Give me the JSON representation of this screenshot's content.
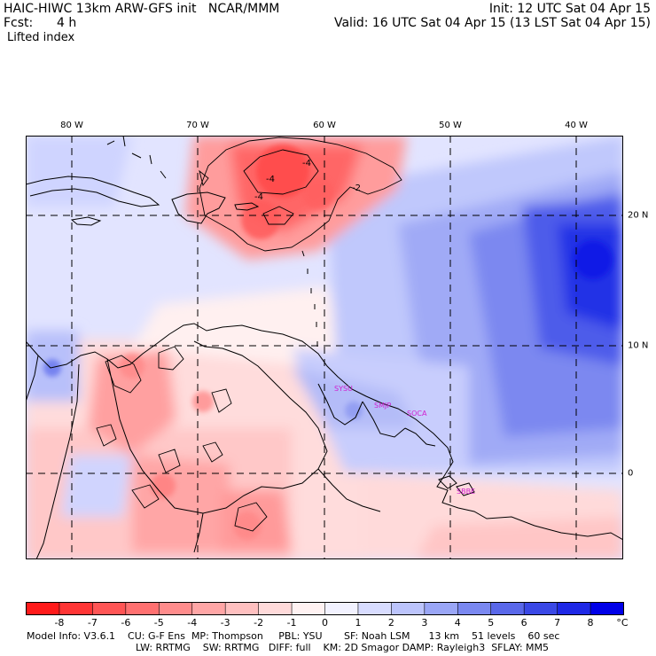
{
  "header": {
    "line1_left": "HAIC-HIWC 13km ARW-GFS init   NCAR/MMM",
    "line1_right": "Init: 12 UTC Sat 04 Apr 15",
    "fcst_label": "Fcst:",
    "fcst_value": "4 h",
    "line2_right": "Valid: 16 UTC Sat 04 Apr 15 (13 LST Sat 04 Apr 15)",
    "field": "Lifted index"
  },
  "map": {
    "lon_labels": [
      "80 W",
      "70 W",
      "60 W",
      "50 W",
      "40 W"
    ],
    "lat_labels": [
      "20 N",
      "10 N",
      "0"
    ],
    "stations": [
      "SYSU",
      "SMJP",
      "SOCA",
      "SBBE"
    ],
    "contour_labels": [
      "-4",
      "-4",
      "-4",
      "-2"
    ]
  },
  "colorbar": {
    "ticks": [
      "-8",
      "-7",
      "-6",
      "-5",
      "-4",
      "-3",
      "-2",
      "-1",
      "0",
      "1",
      "2",
      "3",
      "4",
      "5",
      "6",
      "7",
      "8"
    ],
    "unit": "°C",
    "colors": [
      "#ff1a1a",
      "#ff3535",
      "#ff5555",
      "#ff7070",
      "#ff8c8c",
      "#ffa6a6",
      "#ffc0c0",
      "#ffdada",
      "#fff2f2",
      "#f2f2ff",
      "#d8dcff",
      "#bcc4fc",
      "#9aa6f6",
      "#7a88f0",
      "#5a68ea",
      "#3a48e6",
      "#1e28e6",
      "#0000e8"
    ]
  },
  "footer": {
    "line1": "Model Info: V3.6.1    CU: G-F Ens  MP: Thompson     PBL: YSU       SF: Noah LSM      13 km    51 levels    60 sec",
    "line2": "LW: RRTMG    SW: RRTMG   DIFF: full    KM: 2D Smagor DAMP: Rayleigh3  SFLAY: MM5"
  }
}
